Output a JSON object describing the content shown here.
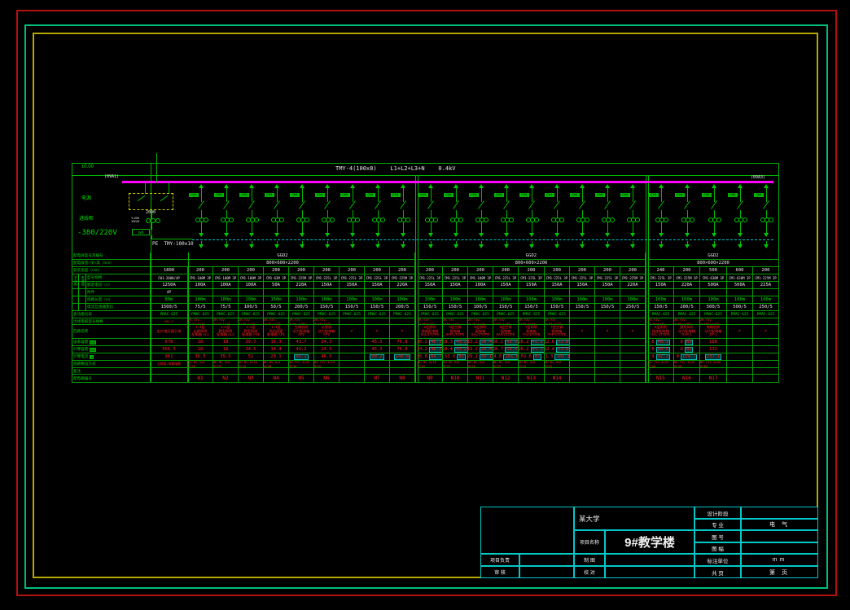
{
  "colors": {
    "line_green": "#00b400",
    "text_green": "#00dd00",
    "busbar_magenta": "#ff00ff",
    "cyan": "#00c8c8",
    "red_text": "#ff2020",
    "frame_yellow": "#b5a600",
    "frame_teal": "#00bd7a",
    "frame_red": "#b41010",
    "white": "#e8e8e8"
  },
  "diagram": {
    "band": {
      "left_label": "±0.00",
      "header": "TMY-4(100x8)    L1+L2+L3+N    0.4kV"
    },
    "bus": {
      "tag_left": "(09A1)",
      "tag_right": "(09A3)"
    },
    "incoming_bay": {
      "switch_rating": "2000",
      "ct_text": "Y-400\n100/5",
      "meter_text": "Wh",
      "pe_label": "PE  TMY-100x10"
    },
    "side_labels": {
      "top": "电源",
      "mid": "进线柜",
      "voltage": "-380/220V"
    },
    "feeder_tag": "CM1"
  },
  "schedule": {
    "row_labels": [
      "配电屏型号及编号",
      "配电屏宽×深×高（mm）",
      "安装宽度（mm）",
      "型号规格",
      "额定电流（A）",
      "附件",
      "线路长度（m）",
      "电流互感器变比",
      "多功能仪表",
      "出线电缆型号规格",
      "回路名称",
      "设备容量",
      "计算容量",
      "计算电流",
      "线路敷设方式",
      "备注",
      "配电箱编号"
    ],
    "row_units": {
      "11": "kW",
      "12": "kW",
      "13": "A"
    },
    "group_strips": [
      "开关柜",
      "断路器"
    ],
    "incoming": {
      "width": "1800",
      "breaker": "CW1-2000/4P",
      "amps": "1250A",
      "acc": "4P",
      "len": "80m",
      "ct": "1500/5",
      "meter": "PMAC-625",
      "cable": "4SL-2",
      "load": "由1#变压器引来",
      "p1": "678",
      "p2": "566.5",
      "i": "961",
      "branch": "沿桥架/穿管暗敷",
      "note": "",
      "num": ""
    },
    "sections": [
      {
        "model": "GGD2",
        "size": "800×600×2200",
        "cols": [
          {
            "width": "200",
            "breaker": "CM1-100M 3P",
            "amps": "100A",
            "acc": "",
            "len": "100m",
            "ct": "75/5",
            "meter": "PMAC-625",
            "cable": "ZR-YJV-4x25+1x16",
            "load": "1~4层\n走廊照明\n配电箱 AL1",
            "p1": "18",
            "p2": "18",
            "i": "39.5",
            "branch": "NH-BV-5x6 SC25",
            "note": "",
            "num": "N1"
          },
          {
            "width": "200",
            "breaker": "CM1-100M 3P",
            "amps": "100A",
            "acc": "",
            "len": "100m",
            "ct": "75/5",
            "meter": "PMAC-625",
            "cable": "ZR-YJV-4x25+1x16",
            "load": "1~4层\n教室照明\n配电箱 AL2",
            "p1": "18",
            "p2": "18",
            "i": "39.5",
            "branch": "NH-BV-5x6 SC25",
            "note": "",
            "num": "N2"
          },
          {
            "width": "200",
            "breaker": "CM1-100M 3P",
            "amps": "100A",
            "acc": "",
            "len": "100m",
            "ct": "100/5",
            "meter": "PMAC-625",
            "cable": "ZR-YJV-4x35+1x16",
            "load": "1~4层\n教室插座\n配电箱 AX1",
            "p1": "39.7",
            "p2": "34.5",
            "i": "51",
            "branch": "NH-BV-5x10 SC32",
            "note": "",
            "num": "N3"
          },
          {
            "width": "200",
            "breaker": "CM1-63M 3P",
            "amps": "50A",
            "acc": "",
            "len": "150m",
            "ct": "50/5",
            "meter": "PMAC-625",
            "cable": "ZR-YJV-4x16+1x10",
            "load": "1~4层\n风机盘管\n配电箱 AP1",
            "p1": "16.3",
            "p2": "14.4",
            "i": "29.1",
            "branch": "NH-BV-5x4 SC20",
            "note": "",
            "num": "N4"
          },
          {
            "width": "200",
            "breaker": "CM1-225M 3P",
            "amps": "220A",
            "acc": "",
            "len": "100m",
            "ct": "200/5",
            "meter": "PMAC-625",
            "cable": "ZR-YJV-4x95+1x50",
            "load": "空调机房\n动力配电箱\nAP2",
            "p1": "43.7",
            "p2": "43.2",
            "i": "^95.1",
            "branch": "NH-YJV-4x25 SC40",
            "note": "",
            "num": "N5"
          },
          {
            "width": "200",
            "breaker": "CM1-225L 3P",
            "amps": "150A",
            "acc": "",
            "len": "100m",
            "ct": "150/5",
            "meter": "PMAC-625",
            "cable": "ZR-YJV-4x70+1x35",
            "load": "水泵房\n动力配电箱\nAP3",
            "p1": "24.3",
            "p2": "24.5",
            "i": "46.5",
            "branch": "NH-YJV-4x16 SC32",
            "note": "",
            "num": "N6"
          },
          {
            "width": "200",
            "breaker": "CM1-225L 3P",
            "amps": "150A",
            "acc": "",
            "len": "100m",
            "ct": "150/5",
            "meter": "PMAC-625",
            "cable": "",
            "load": "≠",
            "p1": "",
            "p2": "",
            "i": "",
            "branch": "",
            "note": "",
            "num": ""
          },
          {
            "width": "200",
            "breaker": "CM1-225L 3P",
            "amps": "150A",
            "acc": "",
            "len": "100m",
            "ct": "150/5",
            "meter": "PMAC-625",
            "cable": "",
            "load": "≠",
            "p1": "45.3",
            "p2": "45.3",
            "i": "^90.2",
            "branch": "",
            "note": "",
            "num": "N7"
          },
          {
            "width": "200",
            "breaker": "CM1-225M 3P",
            "amps": "220A",
            "acc": "",
            "len": "100m",
            "ct": "200/5",
            "meter": "PMAC-625",
            "cable": "",
            "load": "≠",
            "p1": "76.8",
            "p2": "76.8",
            "i": "^146.6",
            "branch": "",
            "note": "",
            "num": "N8"
          }
        ]
      },
      {
        "model": "GGD2",
        "size": "800×600×2200",
        "cols": [
          {
            "width": "200",
            "breaker": "CM1-225L 3P",
            "amps": "150A",
            "acc": "",
            "len": "100m",
            "ct": "150/5",
            "meter": "PMAC-625",
            "cable": "ZR-YJV-4x70+2x35",
            "load": "5层照明\n插座配电箱\n5AL/1TOPE",
            "p1": "36.2|^48.3",
            "p2": "34.2|^48.3",
            "i": "96.8|^84.7",
            "branch": "NH-BV-5x10 SC32",
            "note": "",
            "num": "N9"
          },
          {
            "width": "200",
            "breaker": "CM1-225L 3P",
            "amps": "150A",
            "acc": "",
            "len": "100m",
            "ct": "150/5",
            "meter": "PMAC-625",
            "cable": "ZR-YJV-4x50+1x25",
            "load": "5层空调\n配电箱\n5AP/1TOPE",
            "p1": "28.3|^43.2",
            "p2": "28.4|^43.2",
            "i": "53.6|^82",
            "branch": "NH-BV-5x6 SC25",
            "note": "",
            "num": "N10"
          },
          {
            "width": "200",
            "breaker": "CM1-100M 3P",
            "amps": "100A",
            "acc": "",
            "len": "100m",
            "ct": "100/5",
            "meter": "PMAC-625",
            "cable": "ZR-YJV-4x25+1x16",
            "load": "6层照明\n配电箱\n6AL/1TOPE",
            "p1": "13.2|^26.4",
            "p2": "13.2|^26.4",
            "i": "29.1|^50.1",
            "branch": "NH-BV-5x6 SC25",
            "note": "",
            "num": "N11"
          },
          {
            "width": "200",
            "breaker": "CM1-225L 3P",
            "amps": "150A",
            "acc": "",
            "len": "100m",
            "ct": "150/5",
            "meter": "PMAC-625",
            "cable": "ZR-YJV-4x70+1x35",
            "load": "6层空调\n配电箱\n6AP/1TOPE",
            "p1": "28.2|^53.5",
            "p2": "28.7|^53.5",
            "i": "54.6|^101.6",
            "branch": "NH-BV-5x6 SC25",
            "note": "",
            "num": "N12"
          },
          {
            "width": "200",
            "breaker": "CM1-225L 3P",
            "amps": "150A",
            "acc": "",
            "len": "100m",
            "ct": "150/5",
            "meter": "PMAC-625",
            "cable": "ZR-YJV-4x50+1x25",
            "load": "7层照明\n配电箱\n7AL/1TOPE",
            "p1": "26.2|^45.1",
            "p2": "26.2|^45.1",
            "i": "53.6|^87",
            "branch": "NH-BV-5x6 SC25",
            "note": "",
            "num": "N13"
          },
          {
            "width": "200",
            "breaker": "CM1-225L 3P",
            "amps": "150A",
            "acc": "",
            "len": "100m",
            "ct": "150/5",
            "meter": "PMAC-625",
            "cable": "ZR-YJV-4x50+1x25",
            "load": "7层空调\n配电箱\n7AP/1TOPE",
            "p1": "32.6|^53.8",
            "p2": "32.4|^53.8",
            "i": "81.3|^102.3",
            "branch": "NH-BV-5x6 SC25",
            "note": "",
            "num": "N14"
          },
          {
            "width": "200",
            "breaker": "CM1-225L 3P",
            "amps": "150A",
            "acc": "",
            "len": "100m",
            "ct": "150/5",
            "meter": "",
            "cable": "",
            "load": "≠",
            "p1": "",
            "p2": "",
            "i": "",
            "branch": "",
            "note": "",
            "num": ""
          },
          {
            "width": "200",
            "breaker": "CM1-225L 3P",
            "amps": "150A",
            "acc": "",
            "len": "100m",
            "ct": "150/5",
            "meter": "",
            "cable": "",
            "load": "≠",
            "p1": "",
            "p2": "",
            "i": "",
            "branch": "",
            "note": "",
            "num": ""
          },
          {
            "width": "200",
            "breaker": "CM1-225M 3P",
            "amps": "220A",
            "acc": "",
            "len": "100m",
            "ct": "250/5",
            "meter": "",
            "cable": "",
            "load": "≠",
            "p1": "",
            "p2": "",
            "i": "",
            "branch": "",
            "note": "",
            "num": ""
          }
        ]
      },
      {
        "model": "GGD2",
        "size": "800×600×2200",
        "cols": [
          {
            "width": "240",
            "breaker": "CM1-225L 3P",
            "amps": "150A",
            "acc": "",
            "len": "100m",
            "ct": "150/5",
            "meter": "PMAC-625",
            "cable": "ZR-YJV-4x70+1x35",
            "load": "8层照明\n插座配电箱\n8AL-1TOPE",
            "p1": "8|^48.1",
            "p2": "8|^48.5",
            "i": "9|^92.1",
            "branch": "NH-YJV-4x25 SC40",
            "note": "",
            "num": "N15"
          },
          {
            "width": "200",
            "breaker": "CM1-225M 3P",
            "amps": "220A",
            "acc": "",
            "len": "100m",
            "ct": "200/5",
            "meter": "PMAC-625",
            "cable": "ZR-YJV-4x95+1x50",
            "load": "屋顶风机\n动力配电箱\nRAP-1",
            "p1": "0|^82",
            "p2": "0|^82",
            "i": "0|^159.7",
            "branch": "NH-YJV-4x35 SC40",
            "note": "",
            "num": "N16"
          },
          {
            "width": "500",
            "breaker": "CM1-630M 3P",
            "amps": "500A",
            "acc": "",
            "len": "100m",
            "ct": "500/5",
            "meter": "PMAC-625",
            "cable": "ZR-YJV-4x185+1x95",
            "load": "电梯机房\n动力配电箱\nDT-1",
            "p1": "188",
            "p2": "132",
            "i": "^237.1",
            "branch": "NH-YJV-4x95 SC80",
            "note": "",
            "num": "N17"
          },
          {
            "width": "600",
            "breaker": "CM1-630M 3P",
            "amps": "500A",
            "acc": "",
            "len": "100m",
            "ct": "500/5",
            "meter": "PMAC-625",
            "cable": "",
            "load": "≠",
            "p1": "",
            "p2": "",
            "i": "",
            "branch": "",
            "note": "",
            "num": ""
          },
          {
            "width": "200",
            "breaker": "CM1-225M 3P",
            "amps": "225A",
            "acc": "",
            "len": "100m",
            "ct": "250/5",
            "meter": "PMAC-625",
            "cable": "",
            "load": "≠",
            "p1": "",
            "p2": "",
            "i": "",
            "branch": "",
            "note": "",
            "num": ""
          }
        ]
      }
    ]
  },
  "titleblock": {
    "university": "某大学",
    "project_label": "项目名称",
    "project_name": "9#教学楼",
    "right_rows": [
      [
        "设计阶段",
        ""
      ],
      [
        "专  业",
        "电  气"
      ],
      [
        "图  号",
        ""
      ],
      [
        "图  幅",
        ""
      ],
      [
        "标注单位",
        "mm"
      ],
      [
        "共  页",
        "第  页"
      ]
    ],
    "left_rows": [
      [
        "项目负责",
        ""
      ],
      [
        "审  核",
        ""
      ]
    ],
    "mid_rows": [
      [
        "制  图",
        ""
      ],
      [
        "校  对",
        ""
      ]
    ]
  }
}
